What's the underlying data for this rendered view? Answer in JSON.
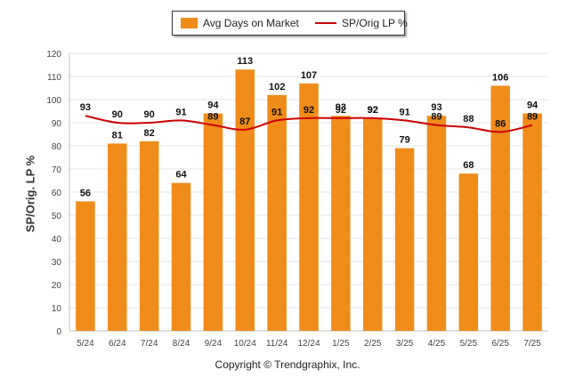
{
  "legend": {
    "bar_label": "Avg Days on Market",
    "line_label": "SP/Orig LP %"
  },
  "footer": "Copyright © Trendgraphix, Inc.",
  "chart_data": {
    "type": "bar",
    "ylabel": "SP/Orig. LP %",
    "xlabel": "",
    "ylim": [
      0,
      120
    ],
    "yticks": [
      0,
      10,
      20,
      30,
      40,
      50,
      60,
      70,
      80,
      90,
      100,
      110,
      120
    ],
    "grid": true,
    "legend_position": "top-center",
    "categories": [
      "5/24",
      "6/24",
      "7/24",
      "8/24",
      "9/24",
      "10/24",
      "11/24",
      "12/24",
      "1/25",
      "2/25",
      "3/25",
      "4/25",
      "5/25",
      "6/25",
      "7/25"
    ],
    "series": [
      {
        "name": "Avg Days on Market",
        "type": "bar",
        "color": "#ef8c1a",
        "values": [
          56,
          81,
          82,
          64,
          94,
          113,
          102,
          107,
          93,
          92,
          79,
          93,
          68,
          106,
          94
        ]
      },
      {
        "name": "SP/Orig LP %",
        "type": "line",
        "color": "#cc0000",
        "values": [
          93,
          90,
          90,
          91,
          89,
          87,
          91,
          92,
          92,
          92,
          91,
          89,
          88,
          86,
          89
        ]
      }
    ]
  }
}
